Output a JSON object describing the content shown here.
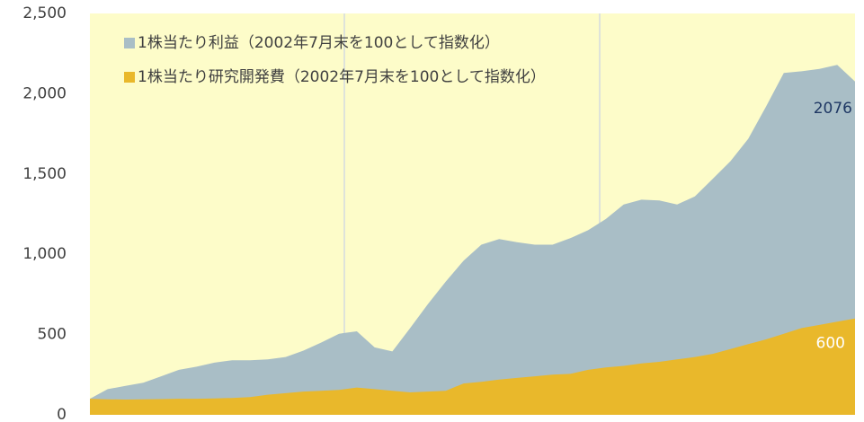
{
  "chart_data": {
    "type": "area",
    "categories": [
      null,
      null,
      null,
      null,
      null,
      null,
      null,
      null,
      null,
      null,
      null,
      null,
      null,
      null,
      null,
      null,
      null,
      null,
      null,
      null,
      null,
      null,
      null,
      null,
      null,
      null,
      null,
      null,
      null,
      null,
      null,
      null,
      null,
      null,
      null,
      null,
      null,
      null,
      null,
      null,
      null,
      null,
      null,
      null
    ],
    "series": [
      {
        "name": "1株当たり利益（2002年7月末を100として指数化）",
        "color": "#a9bec6",
        "values": [
          100,
          160,
          180,
          200,
          240,
          280,
          300,
          325,
          340,
          340,
          345,
          360,
          400,
          450,
          505,
          520,
          420,
          395,
          540,
          690,
          830,
          960,
          1060,
          1095,
          1075,
          1060,
          1060,
          1100,
          1150,
          1220,
          1310,
          1340,
          1335,
          1310,
          1360,
          1470,
          1580,
          1720,
          1920,
          2130,
          2140,
          2155,
          2180,
          2076
        ]
      },
      {
        "name": "1株当たり研究開発費（2002年7月末を100として指数化）",
        "color": "#e9b82b",
        "values": [
          100,
          97,
          95,
          97,
          98,
          100,
          100,
          102,
          105,
          110,
          125,
          135,
          145,
          150,
          155,
          170,
          160,
          150,
          140,
          145,
          150,
          195,
          205,
          220,
          230,
          240,
          250,
          255,
          280,
          295,
          305,
          320,
          330,
          345,
          360,
          380,
          410,
          440,
          470,
          505,
          540,
          560,
          580,
          600
        ]
      }
    ],
    "ylim": [
      0,
      2500
    ],
    "yticks": [
      0,
      500,
      {
        "value": 1000,
        "label": "1,000"
      },
      {
        "value": 1500,
        "label": "1,500"
      },
      {
        "value": 2000,
        "label": "2,000"
      },
      {
        "value": 2500,
        "label": "2,500"
      }
    ],
    "background": "#fdfcc9",
    "legend": "top-left"
  }
}
